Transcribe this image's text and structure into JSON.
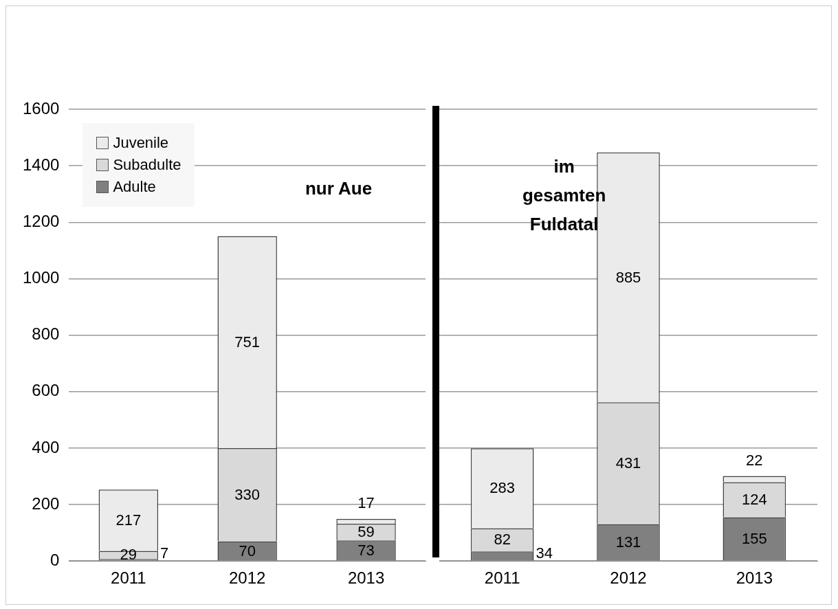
{
  "chart_data": [
    {
      "type": "bar",
      "stacked": true,
      "categories": [
        "2011",
        "2012",
        "2013"
      ],
      "series": [
        {
          "name": "Adulte",
          "color": "#808080",
          "values": [
            7,
            70,
            73
          ]
        },
        {
          "name": "Subadulte",
          "color": "#d9d9d9",
          "values": [
            29,
            330,
            59
          ]
        },
        {
          "name": "Juvenile",
          "color": "#ebebeb",
          "values": [
            217,
            751,
            17
          ]
        }
      ],
      "ylim": [
        0,
        1600
      ],
      "yticks": [
        0,
        200,
        400,
        600,
        800,
        1000,
        1200,
        1400,
        1600
      ],
      "grid": "y",
      "legend": "top left",
      "data_labels": true,
      "annotations": [
        "nur Aue"
      ]
    },
    {
      "type": "bar",
      "stacked": true,
      "categories": [
        "2011",
        "2012",
        "2013"
      ],
      "series": [
        {
          "color": "#808080",
          "values": [
            34,
            131,
            155
          ]
        },
        {
          "color": "#d9d9d9",
          "values": [
            82,
            431,
            124
          ]
        },
        {
          "color": "#ebebeb",
          "values": [
            283,
            885,
            22
          ]
        }
      ],
      "ylim": [
        0,
        1600
      ],
      "tick_labels": "x",
      "grid": "y",
      "data_labels": true,
      "annotations": [
        "im gesamten Fuldatal"
      ]
    }
  ]
}
